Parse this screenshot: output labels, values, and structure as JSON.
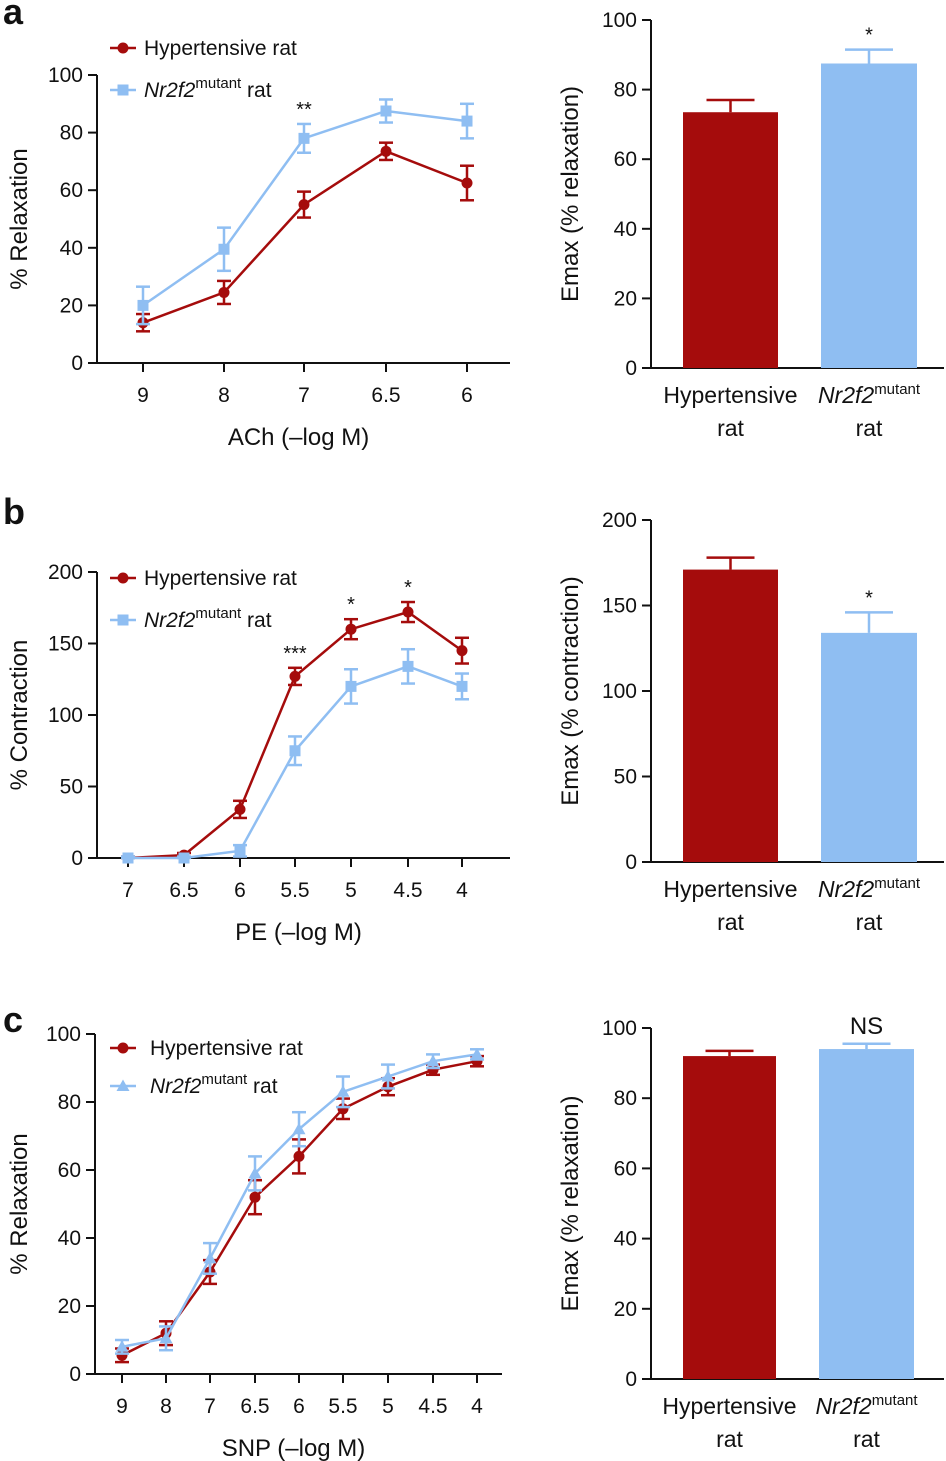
{
  "colors": {
    "hypertensive": "#a50c0c",
    "mutant": "#8fbef2",
    "axis": "#111111"
  },
  "panels": [
    {
      "label": "a"
    },
    {
      "label": "b"
    },
    {
      "label": "c"
    }
  ],
  "chart_data": [
    {
      "id": "a-line",
      "type": "line",
      "x": [
        "9",
        "8",
        "7",
        "6.5",
        "6"
      ],
      "xlabel": "ACh (–log M)",
      "ylabel": "% Relaxation",
      "ylim": [
        0,
        100
      ],
      "yticks": [
        0,
        20,
        40,
        60,
        80,
        100
      ],
      "legend_position": "top-left",
      "series": [
        {
          "name": "Hypertensive rat",
          "legend_main": "Hypertensive rat",
          "marker": "circle",
          "values": [
            14,
            24.5,
            55,
            73.5,
            62.5
          ],
          "errors": [
            3,
            4,
            4.5,
            3,
            6
          ]
        },
        {
          "name": "Nr2f2 mutant rat",
          "legend_main": "Nr2f2",
          "legend_sup": "mutant",
          "legend_suffix": " rat",
          "marker": "square",
          "values": [
            20,
            39.5,
            78,
            87.5,
            84
          ],
          "errors": [
            6.5,
            7.5,
            5,
            4,
            6
          ]
        }
      ],
      "annotations": [
        {
          "x_index": 2,
          "text": "**"
        }
      ]
    },
    {
      "id": "a-bar",
      "type": "bar",
      "categories": [
        "Hypertensive rat",
        "Nr2f2 mutant rat"
      ],
      "cat_line1": [
        "Hypertensive",
        "Nr2f2"
      ],
      "cat_sup": [
        "",
        "mutant"
      ],
      "cat_line2": [
        "rat",
        "rat"
      ],
      "values": [
        73.5,
        87.5
      ],
      "errors": [
        3.5,
        4
      ],
      "ylabel": "Emax (% relaxation)",
      "ylim": [
        0,
        100
      ],
      "yticks": [
        0,
        20,
        40,
        60,
        80,
        100
      ],
      "annotations": [
        "",
        "*"
      ]
    },
    {
      "id": "b-line",
      "type": "line",
      "x": [
        "7",
        "6.5",
        "6",
        "5.5",
        "5",
        "4.5",
        "4"
      ],
      "xlabel": "PE (–log M)",
      "ylabel": "% Contraction",
      "ylim": [
        0,
        200
      ],
      "yticks": [
        0,
        50,
        100,
        150,
        200
      ],
      "legend_position": "top-left",
      "series": [
        {
          "name": "Hypertensive rat",
          "legend_main": "Hypertensive rat",
          "marker": "circle",
          "values": [
            0,
            2,
            34,
            127,
            160,
            172,
            145
          ],
          "errors": [
            1,
            1.5,
            6,
            6,
            7,
            7,
            9
          ]
        },
        {
          "name": "Nr2f2 mutant rat",
          "legend_main": "Nr2f2",
          "legend_sup": "mutant",
          "legend_suffix": " rat",
          "marker": "square",
          "values": [
            0,
            0,
            5,
            75,
            120,
            134,
            120
          ],
          "errors": [
            1,
            1,
            4,
            10,
            12,
            12,
            9
          ]
        }
      ],
      "annotations": [
        {
          "x_index": 3,
          "text": "***"
        },
        {
          "x_index": 4,
          "text": "*"
        },
        {
          "x_index": 5,
          "text": "*"
        }
      ]
    },
    {
      "id": "b-bar",
      "type": "bar",
      "categories": [
        "Hypertensive rat",
        "Nr2f2 mutant rat"
      ],
      "cat_line1": [
        "Hypertensive",
        "Nr2f2"
      ],
      "cat_sup": [
        "",
        "mutant"
      ],
      "cat_line2": [
        "rat",
        "rat"
      ],
      "values": [
        171,
        134
      ],
      "errors": [
        7,
        12
      ],
      "ylabel": "Emax (% contraction)",
      "ylim": [
        0,
        200
      ],
      "yticks": [
        0,
        50,
        100,
        150,
        200
      ],
      "annotations": [
        "",
        "*"
      ]
    },
    {
      "id": "c-line",
      "type": "line",
      "x": [
        "9",
        "8",
        "7",
        "6.5",
        "6",
        "5.5",
        "5",
        "4.5",
        "4"
      ],
      "xlabel": "SNP (–log M)",
      "ylabel": "% Relaxation",
      "ylim": [
        0,
        100
      ],
      "yticks": [
        0,
        20,
        40,
        60,
        80,
        100
      ],
      "legend_position": "top-left",
      "series": [
        {
          "name": "Hypertensive rat",
          "legend_main": "Hypertensive rat",
          "marker": "circle",
          "values": [
            5.5,
            12,
            30,
            52,
            64,
            78,
            84.5,
            89.5,
            92
          ],
          "errors": [
            2,
            3.5,
            3.5,
            5,
            5,
            3,
            2.5,
            1.5,
            1.5
          ]
        },
        {
          "name": "Nr2f2 mutant rat",
          "legend_main": "Nr2f2",
          "legend_sup": "mutant",
          "legend_suffix": " rat",
          "marker": "triangle",
          "values": [
            8,
            10.5,
            34,
            59,
            72,
            83,
            87.5,
            92,
            94
          ],
          "errors": [
            2,
            3.5,
            4.5,
            5,
            5,
            4.5,
            3.5,
            2,
            1.5
          ]
        }
      ],
      "annotations": []
    },
    {
      "id": "c-bar",
      "type": "bar",
      "categories": [
        "Hypertensive rat",
        "Nr2f2 mutant rat"
      ],
      "cat_line1": [
        "Hypertensive",
        "Nr2f2"
      ],
      "cat_sup": [
        "",
        "mutant"
      ],
      "cat_line2": [
        "rat",
        "rat"
      ],
      "values": [
        92,
        94
      ],
      "errors": [
        1.5,
        1.5
      ],
      "ylabel": "Emax (% relaxation)",
      "ylim": [
        0,
        100
      ],
      "yticks": [
        0,
        20,
        40,
        60,
        80,
        100
      ],
      "annotations": [
        "",
        "NS"
      ]
    }
  ]
}
